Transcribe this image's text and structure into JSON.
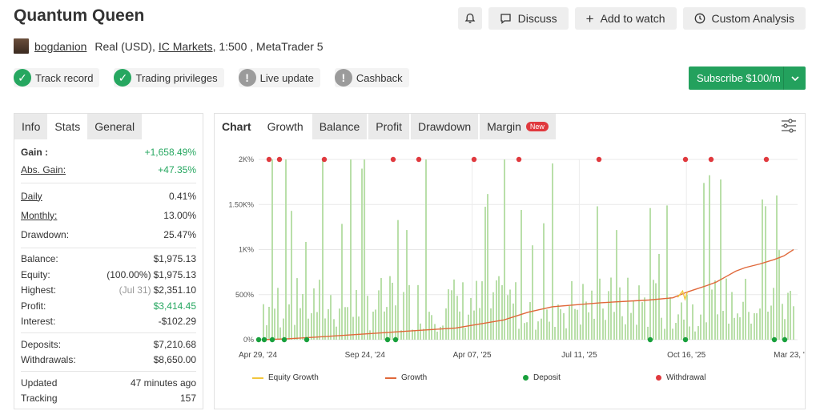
{
  "title": "Quantum Queen",
  "header_buttons": {
    "discuss": "Discuss",
    "add_watch": "Add to watch",
    "custom": "Custom Analysis"
  },
  "subline": {
    "user": "bogdanion",
    "account": "Real (USD),",
    "broker": "IC Markets",
    "rest": ", 1:500 , MetaTrader 5"
  },
  "badges": [
    {
      "label": "Track record",
      "status": "ok"
    },
    {
      "label": "Trading privileges",
      "status": "ok"
    },
    {
      "label": "Live update",
      "status": "gray"
    },
    {
      "label": "Cashback",
      "status": "gray"
    }
  ],
  "subscribe": "Subscribe $100/m",
  "stats_tabs": [
    "Info",
    "Stats",
    "General"
  ],
  "stats": {
    "gain_k": "Gain :",
    "gain_v": "+1,658.49%",
    "absgain_k": "Abs. Gain:",
    "absgain_v": "+47.35%",
    "daily_k": "Daily",
    "daily_v": "0.41%",
    "monthly_k": "Monthly:",
    "monthly_v": "13.00%",
    "drawdown_k": "Drawdown:",
    "drawdown_v": "25.47%",
    "balance_k": "Balance:",
    "balance_v": "$1,975.13",
    "equity_k": "Equity:",
    "equity_pct": "(100.00%)",
    "equity_v": "$1,975.13",
    "highest_k": "Highest:",
    "highest_date": "(Jul 31)",
    "highest_v": "$2,351.10",
    "profit_k": "Profit:",
    "profit_v": "$3,414.45",
    "interest_k": "Interest:",
    "interest_v": "-$102.29",
    "deposits_k": "Deposits:",
    "deposits_v": "$7,210.68",
    "withdrawals_k": "Withdrawals:",
    "withdrawals_v": "$8,650.00",
    "updated_k": "Updated",
    "updated_v": "47 minutes ago",
    "tracking_k": "Tracking",
    "tracking_v": "157"
  },
  "chart_tabs": [
    "Chart",
    "Growth",
    "Balance",
    "Profit",
    "Drawdown",
    "Margin"
  ],
  "new_badge": "New",
  "colors": {
    "equity": "#f2c63c",
    "growth": "#e0683a",
    "deposit": "#18a03c",
    "withdrawal": "#e0393e",
    "bars": "#b9dfa9",
    "accent": "#23a15d"
  },
  "chart_data": {
    "type": "line",
    "y_ticks": [
      "0%",
      "500%",
      "1K%",
      "1.50K%",
      "2K%"
    ],
    "y_values": [
      0,
      500,
      1000,
      1500,
      2000
    ],
    "ylim": [
      0,
      2000
    ],
    "x_ticks": [
      "Apr 29, '24",
      "Sep 24, '24",
      "Apr 07, '25",
      "Jul 11, '25",
      "Oct 16, '25",
      "Mar 23, '26"
    ],
    "legend": [
      "Equity Growth",
      "Growth",
      "Deposit",
      "Withdrawal"
    ],
    "series": [
      {
        "name": "Growth",
        "points": [
          [
            0,
            0
          ],
          [
            0.05,
            10
          ],
          [
            0.1,
            25
          ],
          [
            0.2,
            60
          ],
          [
            0.3,
            95
          ],
          [
            0.4,
            130
          ],
          [
            0.5,
            220
          ],
          [
            0.55,
            305
          ],
          [
            0.6,
            365
          ],
          [
            0.7,
            410
          ],
          [
            0.8,
            440
          ],
          [
            0.85,
            465
          ],
          [
            0.88,
            530
          ],
          [
            0.9,
            565
          ],
          [
            0.92,
            600
          ],
          [
            0.94,
            640
          ],
          [
            0.96,
            700
          ],
          [
            0.98,
            760
          ],
          [
            1.0,
            800
          ],
          [
            1.03,
            840
          ],
          [
            1.06,
            890
          ],
          [
            1.08,
            930
          ],
          [
            1.1,
            1000
          ]
        ]
      },
      {
        "name": "Equity Growth",
        "points": [
          [
            0,
            0
          ],
          [
            0.5,
            220
          ],
          [
            0.86,
            470
          ],
          [
            0.87,
            540
          ],
          [
            0.875,
            520
          ],
          [
            0.88,
            530
          ]
        ]
      }
    ]
  }
}
